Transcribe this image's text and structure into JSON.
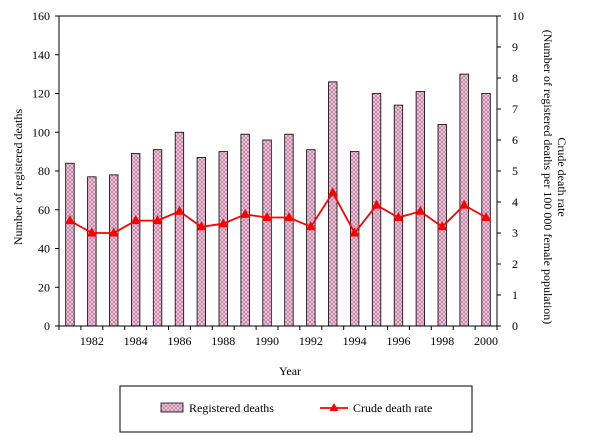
{
  "chart_data": {
    "type": "bar",
    "x": [
      1981,
      1982,
      1983,
      1984,
      1985,
      1986,
      1987,
      1988,
      1989,
      1990,
      1991,
      1992,
      1993,
      1994,
      1995,
      1996,
      1997,
      1998,
      1999,
      2000
    ],
    "x_tick_labels": [
      "1982",
      "1984",
      "1986",
      "1988",
      "1990",
      "1992",
      "1994",
      "1996",
      "1998",
      "2000"
    ],
    "series": [
      {
        "name": "Registered deaths",
        "kind": "bar",
        "axis": "left",
        "values": [
          84,
          77,
          78,
          89,
          91,
          100,
          87,
          90,
          99,
          96,
          99,
          91,
          126,
          90,
          120,
          114,
          121,
          104,
          130,
          120
        ]
      },
      {
        "name": "Crude death rate",
        "kind": "line",
        "axis": "right",
        "values": [
          3.4,
          3.0,
          3.0,
          3.4,
          3.4,
          3.7,
          3.2,
          3.3,
          3.6,
          3.5,
          3.5,
          3.2,
          4.3,
          3.0,
          3.9,
          3.5,
          3.7,
          3.2,
          3.9,
          3.5
        ]
      }
    ],
    "xlabel": "Year",
    "ylabel": "Number of registered deaths",
    "y2label_line1": "Crude death rate",
    "y2label_line2": "(Number of registered deaths per 100 000 female population)",
    "ylim": [
      0,
      160
    ],
    "y_ticks": [
      "0",
      "20",
      "40",
      "60",
      "80",
      "100",
      "120",
      "140",
      "160"
    ],
    "y2lim": [
      0,
      10
    ],
    "y2_ticks": [
      "0",
      "1",
      "2",
      "3",
      "4",
      "5",
      "6",
      "7",
      "8",
      "9",
      "10"
    ],
    "grid": false,
    "legend_position": "bottom",
    "colors": {
      "bar_fill": "#f4d4e4",
      "bar_hatch": "#c07aa0",
      "bar_edge": "#000000",
      "line": "#ff0000"
    }
  }
}
